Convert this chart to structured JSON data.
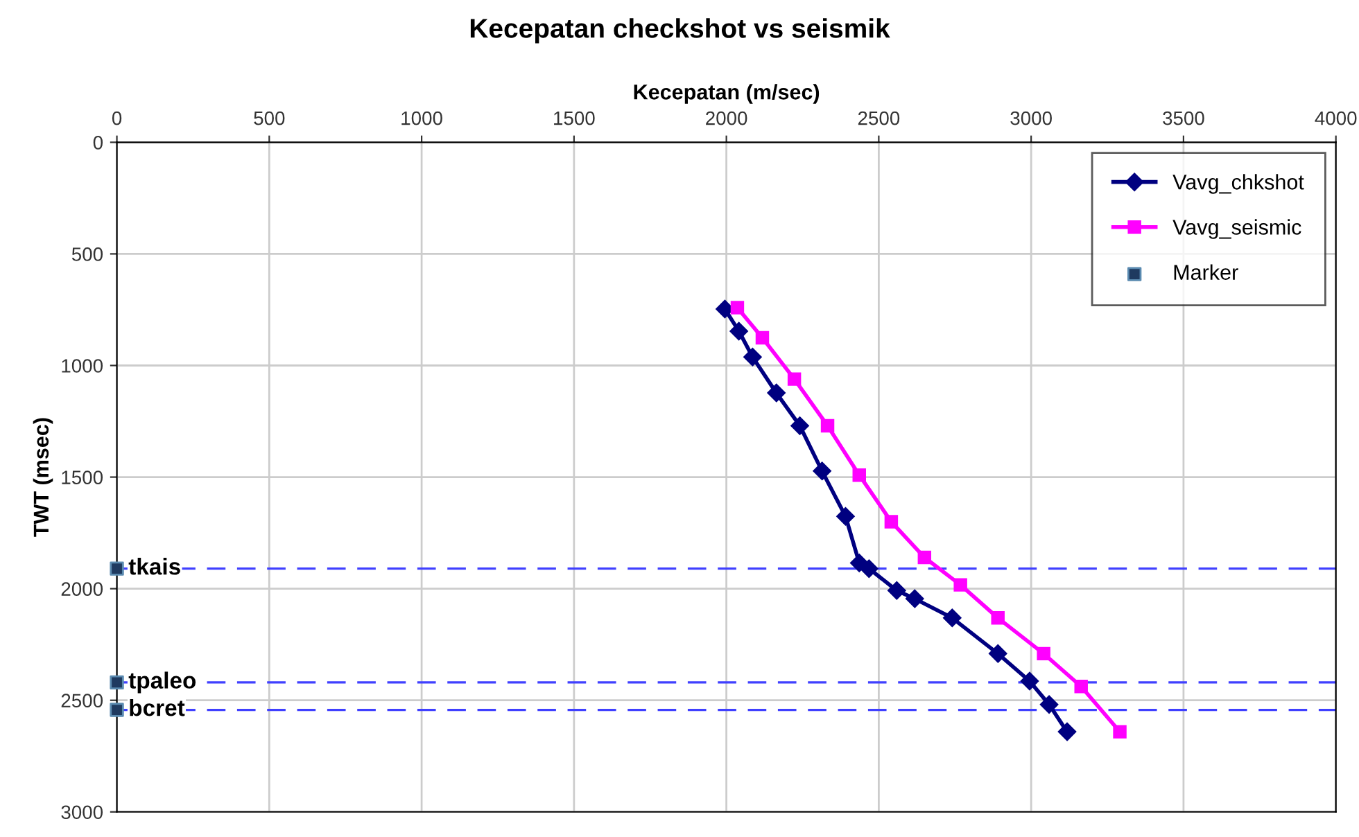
{
  "chart_data": {
    "type": "line",
    "title": "Kecepatan checkshot vs seismik",
    "xlabel": "Kecepatan (m/sec)",
    "ylabel": "TWT (msec)",
    "xlim": [
      0,
      4000
    ],
    "xticks": [
      0,
      500,
      1000,
      1500,
      2000,
      2500,
      3000,
      3500,
      4000
    ],
    "ylim": [
      3000,
      0
    ],
    "yticks": [
      0,
      500,
      1000,
      1500,
      2000,
      2500,
      3000
    ],
    "grid": true,
    "legend": "top right",
    "series": [
      {
        "name": "Vavg_chkshot",
        "marker": "diamond",
        "color": "#000080",
        "x": [
          1995,
          2041,
          2086,
          2164,
          2241,
          2314,
          2391,
          2436,
          2468,
          2559,
          2618,
          2741,
          2891,
          2995,
          3059,
          3118
        ],
        "values": [
          747,
          846,
          962,
          1123,
          1270,
          1473,
          1676,
          1885,
          1910,
          2008,
          2045,
          2131,
          2291,
          2414,
          2519,
          2641
        ]
      },
      {
        "name": "Vavg_seismic",
        "marker": "square",
        "color": "#ff00ff",
        "x": [
          2036,
          2118,
          2223,
          2332,
          2436,
          2541,
          2650,
          2768,
          2891,
          3041,
          3164,
          3291
        ],
        "values": [
          741,
          876,
          1061,
          1270,
          1491,
          1700,
          1860,
          1983,
          2131,
          2291,
          2438,
          2641
        ]
      },
      {
        "name": "Marker",
        "type": "scatter",
        "marker": "square",
        "color": "#1f3a60",
        "x": [
          0,
          0,
          0
        ],
        "values": [
          1910,
          2420,
          2543
        ]
      }
    ],
    "ref_lines": [
      {
        "axis": "y",
        "value": 1910,
        "label": "tkais",
        "color": "#4040ff",
        "line_style": "dashed"
      },
      {
        "axis": "y",
        "value": 2420,
        "label": "tpaleo",
        "color": "#4040ff",
        "line_style": "dashed"
      },
      {
        "axis": "y",
        "value": 2543,
        "label": "bcret",
        "color": "#4040ff",
        "line_style": "dashed"
      }
    ]
  }
}
